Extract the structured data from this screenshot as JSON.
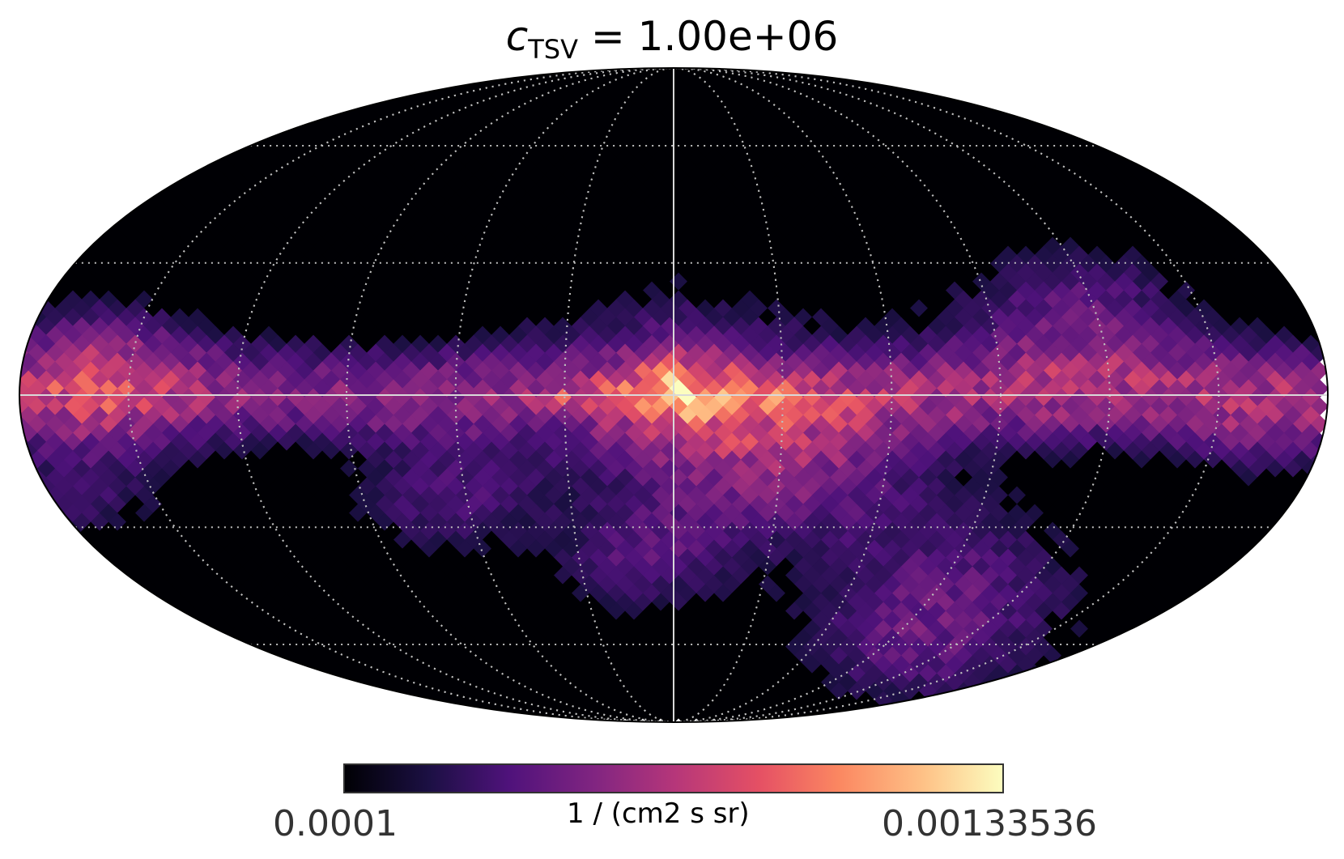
{
  "title": {
    "symbol": "c",
    "subscript": "TSV",
    "rest": " = 1.00e+06"
  },
  "chart_data": {
    "type": "heatmap",
    "projection": "mollweide",
    "colormap": "magma",
    "grid": true,
    "colorbar": {
      "min_label": "0.0001",
      "max_label": "0.00133536",
      "unit": "1 / (cm2 s sr)",
      "min": 0.0001,
      "max": 0.00133536,
      "position": "bottom"
    }
  },
  "colors": {
    "background": "#ffffff",
    "grid": "#bdbdbd",
    "outline": "#000000"
  }
}
